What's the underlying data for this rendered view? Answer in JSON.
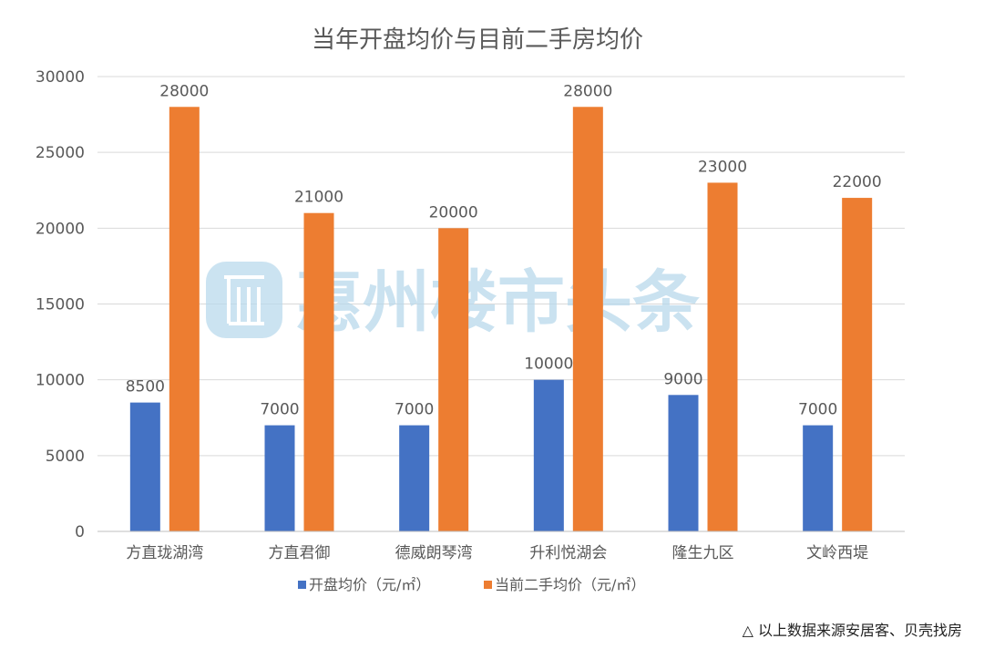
{
  "chart_data": {
    "type": "bar",
    "title": "当年开盘均价与目前二手房均价",
    "categories": [
      "方直珑湖湾",
      "方直君御",
      "德威朗琴湾",
      "升利悦湖会",
      "隆生九区",
      "文岭西堤"
    ],
    "series": [
      {
        "name": "开盘均价（元/㎡）",
        "color": "#4472c4",
        "values": [
          8500,
          7000,
          7000,
          10000,
          9000,
          7000
        ]
      },
      {
        "name": "当前二手均价（元/㎡）",
        "color": "#ed7d31",
        "values": [
          28000,
          21000,
          20000,
          28000,
          23000,
          22000
        ]
      }
    ],
    "ylim": [
      0,
      30000
    ],
    "yticks": [
      0,
      5000,
      10000,
      15000,
      20000,
      25000,
      30000
    ],
    "grid": true,
    "legend": "bottom",
    "xlabel": "",
    "ylabel": ""
  },
  "watermark": {
    "text": "惠州楼市头条",
    "color": "#b9d9ec"
  },
  "source_note": "△ 以上数据来源安居客、贝壳找房"
}
